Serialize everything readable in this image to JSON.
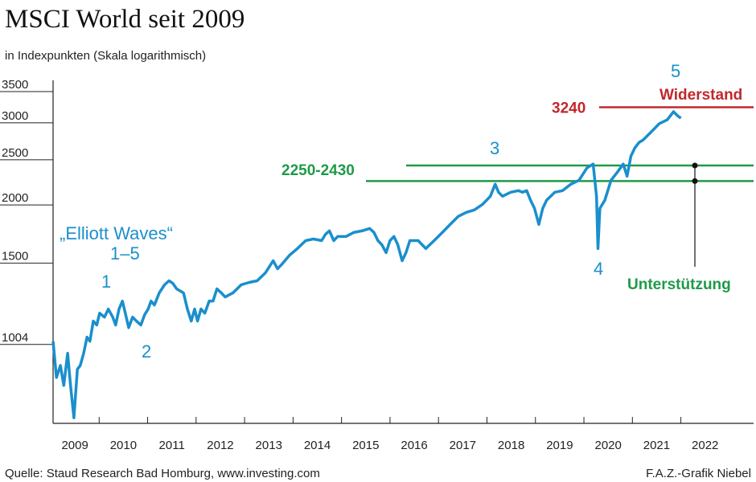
{
  "chart_data": {
    "type": "line",
    "title": "MSCI World seit 2009",
    "subtitle": "in Indexpunkten (Skala logarithmisch)",
    "source": "Quelle: Staud Research Bad Homburg, www.investing.com",
    "credit": "F.A.Z.-Grafik Niebel",
    "log_scale": true,
    "grid": false,
    "color": "#1a8fcc",
    "x": [
      2009.05,
      2009.12,
      2009.2,
      2009.27,
      2009.35,
      2009.41,
      2009.48,
      2009.55,
      2009.61,
      2009.68,
      2009.75,
      2009.81,
      2009.88,
      2009.95,
      2010.01,
      2010.11,
      2010.19,
      2010.28,
      2010.34,
      2010.41,
      2010.48,
      2010.54,
      2010.61,
      2010.69,
      2010.77,
      2010.86,
      2010.94,
      2011.01,
      2011.07,
      2011.14,
      2011.24,
      2011.35,
      2011.44,
      2011.52,
      2011.6,
      2011.74,
      2011.82,
      2011.9,
      2011.97,
      2012.03,
      2012.1,
      2012.18,
      2012.27,
      2012.35,
      2012.43,
      2012.52,
      2012.6,
      2012.76,
      2012.93,
      2013.1,
      2013.26,
      2013.43,
      2013.59,
      2013.68,
      2013.76,
      2013.93,
      2014.09,
      2014.26,
      2014.42,
      2014.59,
      2014.67,
      2014.75,
      2014.84,
      2014.92,
      2015.09,
      2015.25,
      2015.42,
      2015.58,
      2015.67,
      2015.75,
      2015.83,
      2015.92,
      2016.0,
      2016.08,
      2016.16,
      2016.25,
      2016.33,
      2016.41,
      2016.58,
      2016.74,
      2016.91,
      2017.08,
      2017.24,
      2017.41,
      2017.57,
      2017.74,
      2017.91,
      2018.07,
      2018.17,
      2018.24,
      2018.32,
      2018.49,
      2018.65,
      2018.73,
      2018.82,
      2018.9,
      2018.98,
      2019.07,
      2019.15,
      2019.23,
      2019.4,
      2019.56,
      2019.73,
      2019.9,
      2020.06,
      2020.19,
      2020.26,
      2020.29,
      2020.33,
      2020.43,
      2020.56,
      2020.69,
      2020.81,
      2020.89,
      2020.97,
      2021.05,
      2021.14,
      2021.22,
      2021.39,
      2021.55,
      2021.72,
      2021.85,
      2021.93,
      2022.0
    ],
    "values": [
      1020,
      853,
      905,
      820,
      961,
      820,
      699,
      888,
      905,
      961,
      1041,
      1020,
      1127,
      1105,
      1172,
      1149,
      1196,
      1149,
      1105,
      1196,
      1244,
      1172,
      1091,
      1149,
      1127,
      1105,
      1163,
      1196,
      1244,
      1220,
      1295,
      1348,
      1375,
      1358,
      1321,
      1295,
      1196,
      1127,
      1196,
      1127,
      1196,
      1172,
      1244,
      1244,
      1321,
      1295,
      1269,
      1295,
      1348,
      1364,
      1375,
      1430,
      1518,
      1459,
      1488,
      1561,
      1612,
      1677,
      1690,
      1677,
      1731,
      1759,
      1677,
      1711,
      1711,
      1745,
      1759,
      1780,
      1745,
      1677,
      1644,
      1580,
      1677,
      1711,
      1644,
      1518,
      1580,
      1677,
      1677,
      1612,
      1677,
      1745,
      1816,
      1890,
      1927,
      1951,
      2006,
      2087,
      2215,
      2129,
      2087,
      2129,
      2146,
      2129,
      2146,
      2046,
      1966,
      1816,
      1966,
      2046,
      2129,
      2146,
      2215,
      2260,
      2399,
      2447,
      2087,
      1612,
      1966,
      2046,
      2260,
      2351,
      2447,
      2305,
      2546,
      2649,
      2724,
      2757,
      2869,
      2985,
      3045,
      3169,
      3106,
      3069
    ],
    "xlim": [
      2009,
      2023.5
    ],
    "xticks": [
      2009,
      2010,
      2011,
      2012,
      2013,
      2014,
      2015,
      2016,
      2017,
      2018,
      2019,
      2020,
      2021,
      2022
    ],
    "ylim": [
      680,
      3700
    ],
    "yticks": [
      3500,
      3000,
      2500,
      2000,
      1500,
      1004
    ],
    "waves": [
      "„Elliott Waves“",
      "1–5",
      "1",
      "2",
      "3",
      "4",
      "5"
    ],
    "resistance": {
      "value": 3240,
      "label": "Widerstand",
      "color": "#c0282d"
    },
    "support": {
      "range": [
        2250,
        2430
      ],
      "label": "2250-2430",
      "name": "Unterstützung",
      "color": "#1f9a48"
    }
  }
}
